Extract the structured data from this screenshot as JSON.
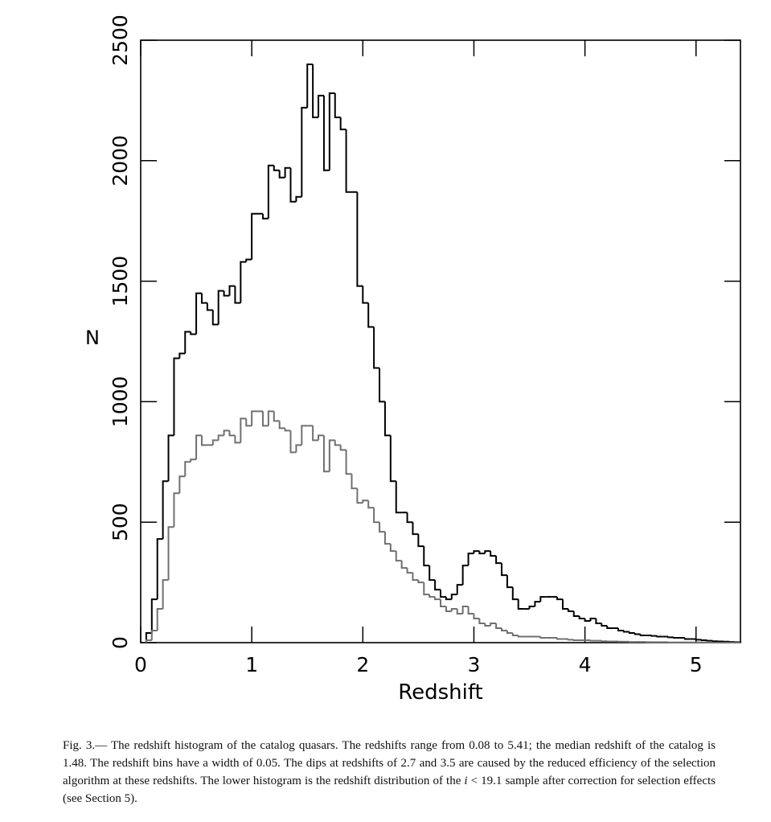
{
  "chart_data": {
    "type": "histogram",
    "xlabel": "Redshift",
    "ylabel": "N",
    "xlim": [
      0,
      5.4
    ],
    "ylim": [
      0,
      2500
    ],
    "xticks": [
      0,
      1,
      2,
      3,
      4,
      5
    ],
    "yticks": [
      0,
      500,
      1000,
      1500,
      2000,
      2500
    ],
    "bins": [
      0.05,
      0.1,
      0.15,
      0.2,
      0.25,
      0.3,
      0.35,
      0.4,
      0.45,
      0.5,
      0.55,
      0.6,
      0.65,
      0.7,
      0.75,
      0.8,
      0.85,
      0.9,
      0.95,
      1,
      1.05,
      1.1,
      1.15,
      1.2,
      1.25,
      1.3,
      1.35,
      1.4,
      1.45,
      1.5,
      1.55,
      1.6,
      1.65,
      1.7,
      1.75,
      1.8,
      1.85,
      1.9,
      1.95,
      2,
      2.05,
      2.1,
      2.15,
      2.2,
      2.25,
      2.3,
      2.35,
      2.4,
      2.45,
      2.5,
      2.55,
      2.6,
      2.65,
      2.7,
      2.75,
      2.8,
      2.85,
      2.9,
      2.95,
      3,
      3.05,
      3.1,
      3.15,
      3.2,
      3.25,
      3.3,
      3.35,
      3.4,
      3.45,
      3.5,
      3.55,
      3.6,
      3.65,
      3.7,
      3.75,
      3.8,
      3.85,
      3.9,
      3.95,
      4,
      4.05,
      4.1,
      4.15,
      4.2,
      4.25,
      4.3,
      4.35,
      4.4,
      4.45,
      4.5,
      4.55,
      4.6,
      4.65,
      4.7,
      4.75,
      4.8,
      4.85,
      4.9,
      4.95,
      5,
      5.05,
      5.1,
      5.15,
      5.2,
      5.25,
      5.3,
      5.35,
      5.4
    ],
    "series": [
      {
        "color": "#000000",
        "values": [
          40,
          180,
          430,
          670,
          860,
          1180,
          1200,
          1290,
          1280,
          1450,
          1410,
          1380,
          1320,
          1460,
          1440,
          1480,
          1410,
          1580,
          1590,
          1780,
          1780,
          1760,
          1980,
          1960,
          1930,
          1970,
          1830,
          1850,
          2220,
          2400,
          2180,
          2270,
          1960,
          2280,
          2180,
          2130,
          1870,
          1870,
          1480,
          1410,
          1310,
          1140,
          1000,
          860,
          670,
          540,
          540,
          500,
          450,
          400,
          320,
          260,
          220,
          190,
          180,
          200,
          240,
          320,
          370,
          380,
          370,
          380,
          360,
          330,
          280,
          230,
          180,
          140,
          140,
          150,
          170,
          190,
          190,
          190,
          180,
          140,
          130,
          110,
          100,
          90,
          100,
          80,
          70,
          60,
          60,
          50,
          45,
          40,
          35,
          30,
          30,
          28,
          25,
          25,
          22,
          20,
          20,
          15,
          15,
          12,
          10,
          8,
          6,
          5,
          4,
          3,
          2
        ]
      },
      {
        "color": "#707070",
        "values": [
          10,
          50,
          140,
          260,
          480,
          620,
          690,
          750,
          760,
          860,
          820,
          820,
          840,
          860,
          880,
          860,
          830,
          930,
          900,
          960,
          960,
          900,
          960,
          920,
          890,
          880,
          790,
          820,
          900,
          900,
          840,
          860,
          710,
          840,
          820,
          800,
          700,
          640,
          580,
          590,
          560,
          500,
          460,
          410,
          380,
          340,
          310,
          290,
          260,
          250,
          200,
          190,
          180,
          150,
          130,
          140,
          120,
          150,
          120,
          100,
          80,
          70,
          80,
          60,
          50,
          40,
          30,
          25,
          25,
          25,
          25,
          20,
          20,
          20,
          15,
          15,
          12,
          10,
          10,
          10,
          8,
          8,
          6,
          5,
          5,
          4,
          4,
          3,
          3,
          3,
          2,
          2,
          2,
          2,
          1,
          1,
          1,
          1,
          1,
          1,
          1,
          0,
          0,
          0,
          0,
          0,
          0
        ]
      }
    ]
  },
  "caption": [
    "Fig. 3.— The redshift histogram of the catalog quasars. The redshifts range from 0.08 to 5.41; the median redshift of the catalog is 1.48. The redshift bins have a width of 0.05. The dips at redshifts of 2.7 and 3.5 are caused by the reduced efficiency of the selection algorithm at these redshifts. The lower histogram is the redshift distribution of the ",
    "i",
    " < 19.1 sample after correction for selection effects (see Section 5)."
  ]
}
